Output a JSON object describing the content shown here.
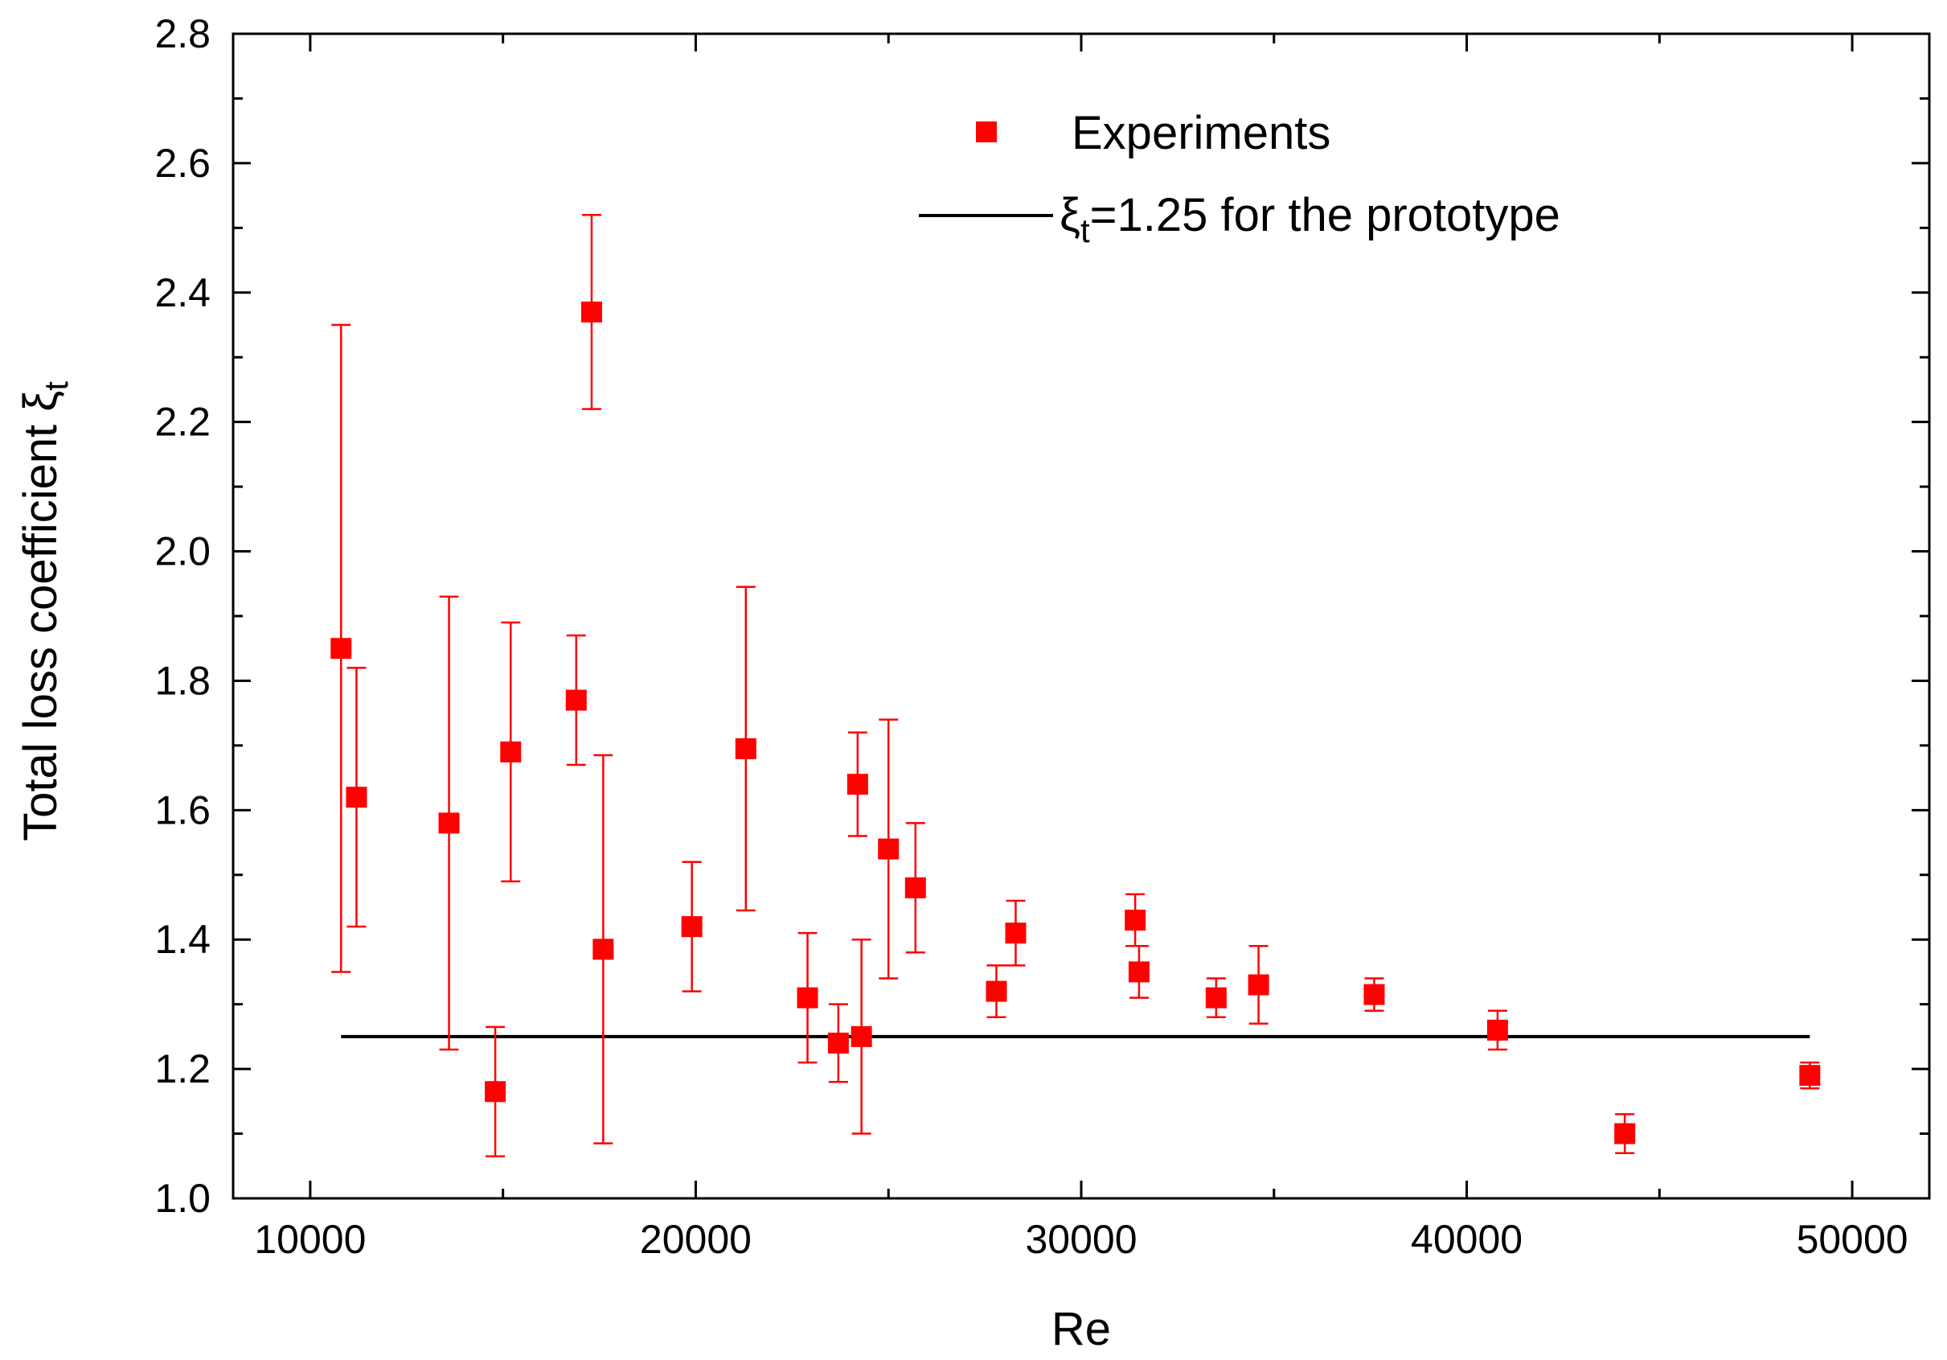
{
  "chart_data": {
    "type": "scatter",
    "title": "",
    "xlabel": "Re",
    "ylabel_main": "Total loss coefficient ",
    "ylabel_symbol": "ξ",
    "ylabel_sub": "t",
    "xlim": [
      8000,
      52000
    ],
    "ylim": [
      1.0,
      2.8
    ],
    "x_ticks": [
      10000,
      20000,
      30000,
      40000,
      50000
    ],
    "x_tick_labels": [
      "10000",
      "20000",
      "30000",
      "40000",
      "50000"
    ],
    "y_ticks": [
      1.0,
      1.2,
      1.4,
      1.6,
      1.8,
      2.0,
      2.2,
      2.4,
      2.6,
      2.8
    ],
    "y_tick_labels": [
      "1.0",
      "1.2",
      "1.4",
      "1.6",
      "1.8",
      "2.0",
      "2.2",
      "2.4",
      "2.6",
      "2.8"
    ],
    "legend": {
      "position": "top-center",
      "experiments_label": "Experiments",
      "prototype_symbol": "ξ",
      "prototype_sub": "t",
      "prototype_rest": "=1.25 for the prototype"
    },
    "colors": {
      "experiments": "#ff0000",
      "reference_line": "#000000",
      "axes": "#000000"
    },
    "series": [
      {
        "name": "Experiments",
        "points": [
          {
            "x": 10800,
            "y": 1.85,
            "lo": 1.35,
            "hi": 2.35
          },
          {
            "x": 11200,
            "y": 1.62,
            "lo": 1.42,
            "hi": 1.82
          },
          {
            "x": 13600,
            "y": 1.58,
            "lo": 1.23,
            "hi": 1.93
          },
          {
            "x": 14800,
            "y": 1.165,
            "lo": 1.065,
            "hi": 1.265
          },
          {
            "x": 15200,
            "y": 1.69,
            "lo": 1.49,
            "hi": 1.89
          },
          {
            "x": 16900,
            "y": 1.77,
            "lo": 1.67,
            "hi": 1.87
          },
          {
            "x": 17300,
            "y": 2.37,
            "lo": 2.22,
            "hi": 2.52
          },
          {
            "x": 17600,
            "y": 1.385,
            "lo": 1.085,
            "hi": 1.685
          },
          {
            "x": 19900,
            "y": 1.42,
            "lo": 1.32,
            "hi": 1.52
          },
          {
            "x": 21300,
            "y": 1.695,
            "lo": 1.445,
            "hi": 1.945
          },
          {
            "x": 22900,
            "y": 1.31,
            "lo": 1.21,
            "hi": 1.41
          },
          {
            "x": 23700,
            "y": 1.24,
            "lo": 1.18,
            "hi": 1.3
          },
          {
            "x": 24200,
            "y": 1.64,
            "lo": 1.56,
            "hi": 1.72
          },
          {
            "x": 24300,
            "y": 1.25,
            "lo": 1.1,
            "hi": 1.4
          },
          {
            "x": 25000,
            "y": 1.54,
            "lo": 1.34,
            "hi": 1.74
          },
          {
            "x": 25700,
            "y": 1.48,
            "lo": 1.38,
            "hi": 1.58
          },
          {
            "x": 27800,
            "y": 1.32,
            "lo": 1.28,
            "hi": 1.36
          },
          {
            "x": 28300,
            "y": 1.41,
            "lo": 1.36,
            "hi": 1.46
          },
          {
            "x": 31400,
            "y": 1.43,
            "lo": 1.39,
            "hi": 1.47
          },
          {
            "x": 31500,
            "y": 1.35,
            "lo": 1.31,
            "hi": 1.39
          },
          {
            "x": 33500,
            "y": 1.31,
            "lo": 1.28,
            "hi": 1.34
          },
          {
            "x": 34600,
            "y": 1.33,
            "lo": 1.27,
            "hi": 1.39
          },
          {
            "x": 37600,
            "y": 1.315,
            "lo": 1.29,
            "hi": 1.34
          },
          {
            "x": 40800,
            "y": 1.26,
            "lo": 1.23,
            "hi": 1.29
          },
          {
            "x": 44100,
            "y": 1.1,
            "lo": 1.07,
            "hi": 1.13
          },
          {
            "x": 48900,
            "y": 1.19,
            "lo": 1.17,
            "hi": 1.21
          }
        ]
      },
      {
        "name": "ξt=1.25 for the prototype",
        "type": "line",
        "value": 1.25,
        "x_range": [
          10800,
          48900
        ]
      }
    ]
  }
}
